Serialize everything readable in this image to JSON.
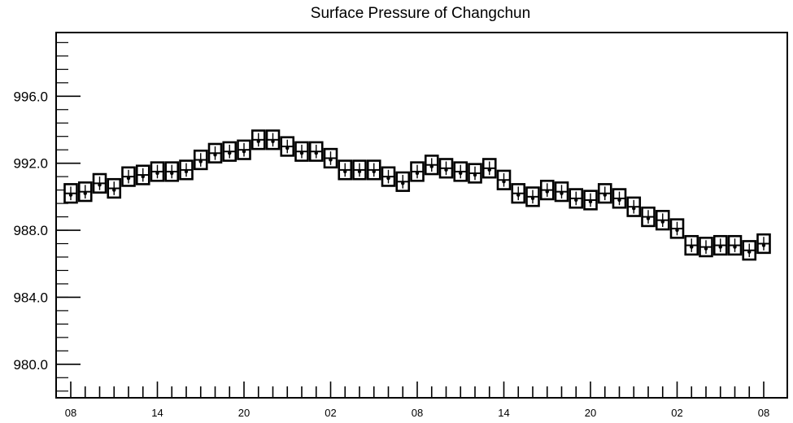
{
  "chart_data": {
    "type": "boxplot",
    "title": "Surface Pressure of Changchun",
    "xlabel": "",
    "ylabel": "",
    "ylim": [
      978.0,
      999.8
    ],
    "yticks": [
      980.0,
      984.0,
      988.0,
      992.0,
      996.0
    ],
    "ytick_labels": [
      "980.0",
      "984.0",
      "988.0",
      "992.0",
      "996.0"
    ],
    "x_step_hours": 1,
    "xtick_labels": [
      {
        "index": 0,
        "label": "08"
      },
      {
        "index": 6,
        "label": "14"
      },
      {
        "index": 12,
        "label": "20"
      },
      {
        "index": 18,
        "label": "02"
      },
      {
        "index": 24,
        "label": "08"
      },
      {
        "index": 30,
        "label": "14"
      },
      {
        "index": 36,
        "label": "20"
      },
      {
        "index": 42,
        "label": "02"
      },
      {
        "index": 48,
        "label": "08"
      }
    ],
    "values": [
      990.2,
      990.3,
      990.8,
      990.5,
      991.2,
      991.3,
      991.5,
      991.5,
      991.6,
      992.2,
      992.6,
      992.7,
      992.8,
      993.4,
      993.4,
      993.0,
      992.7,
      992.7,
      992.3,
      991.6,
      991.6,
      991.6,
      991.2,
      990.9,
      991.5,
      991.9,
      991.7,
      991.5,
      991.4,
      991.7,
      991.0,
      990.2,
      990.0,
      990.4,
      990.3,
      989.9,
      989.8,
      990.2,
      989.9,
      989.4,
      988.8,
      988.6,
      988.1,
      987.1,
      987.0,
      987.1,
      987.1,
      986.8,
      987.2
    ],
    "box_half_height": 0.55,
    "grid": false,
    "legend": "none"
  }
}
